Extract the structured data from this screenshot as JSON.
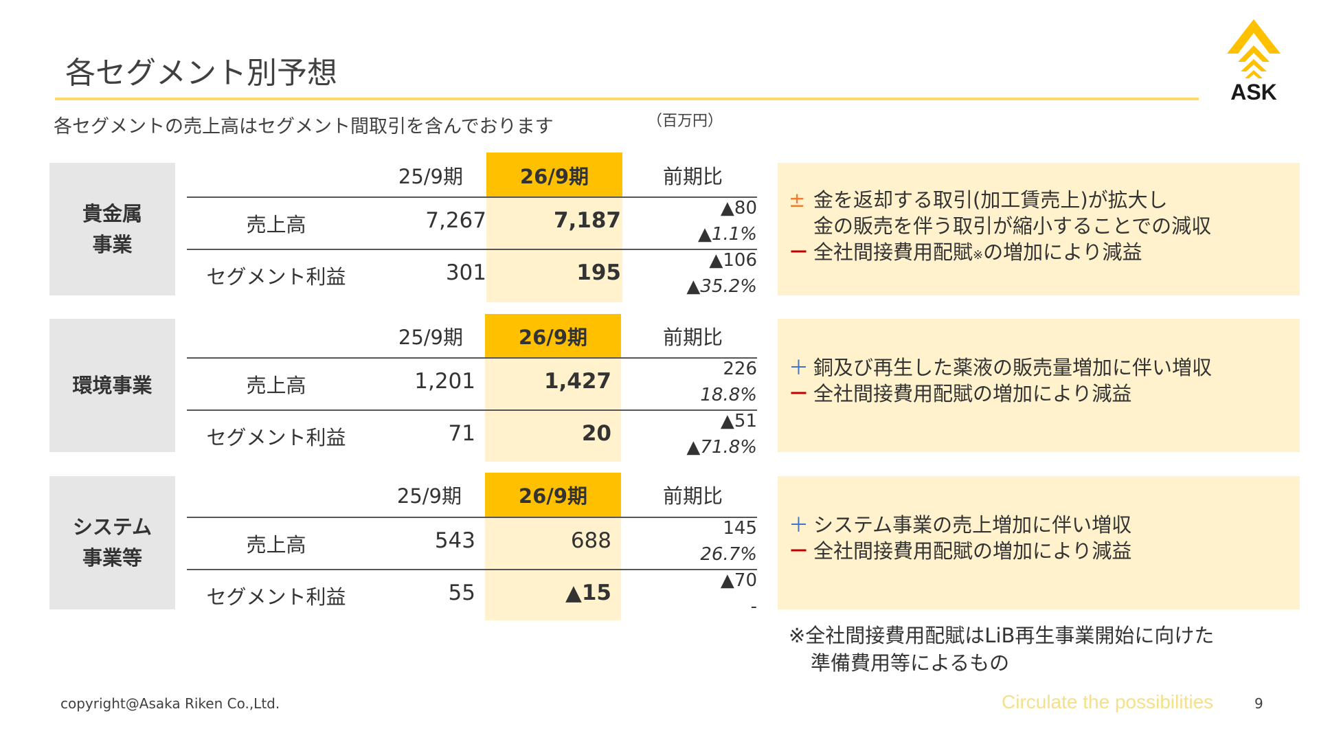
{
  "header": {
    "title": "各セグメント別予想",
    "logo_text": "ASK",
    "subtitle": "各セグメントの売上高はセグメント間取引を含んでおります",
    "unit": "（百万円）"
  },
  "columns": {
    "prev": "25/9期",
    "curr": "26/9期",
    "change": "前期比"
  },
  "segments": [
    {
      "name_line1": "貴金属",
      "name_line2": "事業",
      "rows": [
        {
          "label": "売上高",
          "prev": "7,267",
          "curr": "7,187",
          "diff": "▲80",
          "pct": "▲1.1%"
        },
        {
          "label": "セグメント利益",
          "prev": "301",
          "curr": "195",
          "diff": "▲106",
          "pct": "▲35.2%"
        }
      ],
      "notes": [
        {
          "symbol": "±",
          "text": "金を返却する取引(加工賃売上)が拡大し"
        },
        {
          "symbol": "",
          "text": "金の販売を伴う取引が縮小することでの減収"
        },
        {
          "symbol": "－",
          "text_a": "全社間接費用配賦",
          "mark": "※",
          "text_b": "の増加により減益"
        }
      ]
    },
    {
      "name_line1": "環境事業",
      "name_line2": "",
      "rows": [
        {
          "label": "売上高",
          "prev": "1,201",
          "curr": "1,427",
          "diff": "226",
          "pct": "18.8%"
        },
        {
          "label": "セグメント利益",
          "prev": "71",
          "curr": "20",
          "diff": "▲51",
          "pct": "▲71.8%"
        }
      ],
      "notes": [
        {
          "symbol": "＋",
          "text": "銅及び再生した薬液の販売量増加に伴い増収"
        },
        {
          "symbol": "－",
          "text": "全社間接費用配賦の増加により減益"
        }
      ]
    },
    {
      "name_line1": "システム",
      "name_line2": "事業等",
      "rows": [
        {
          "label": "売上高",
          "prev": "543",
          "curr": "688",
          "diff": "145",
          "pct": "26.7%"
        },
        {
          "label": "セグメント利益",
          "prev": "55",
          "curr": "▲15",
          "diff": "▲70",
          "pct": "-"
        }
      ],
      "notes": [
        {
          "symbol": "＋",
          "text": "システム事業の売上増加に伴い増収"
        },
        {
          "symbol": "－",
          "text": "全社間接費用配賦の増加により減益"
        }
      ]
    }
  ],
  "footnote": {
    "line1": "※全社間接費用配賦はLiB再生事業開始に向けた",
    "line2": "準備費用等によるもの"
  },
  "footer": {
    "copyright": "copyright@Asaka Riken Co.,Ltd.",
    "tagline": "Circulate the possibilities",
    "page": "9"
  },
  "colors": {
    "accent_yellow": "#FFC000",
    "highlight_light": "#FFF2CC",
    "rule_yellow": "#FFD966",
    "segment_label_bg": "#E6E6E6"
  }
}
